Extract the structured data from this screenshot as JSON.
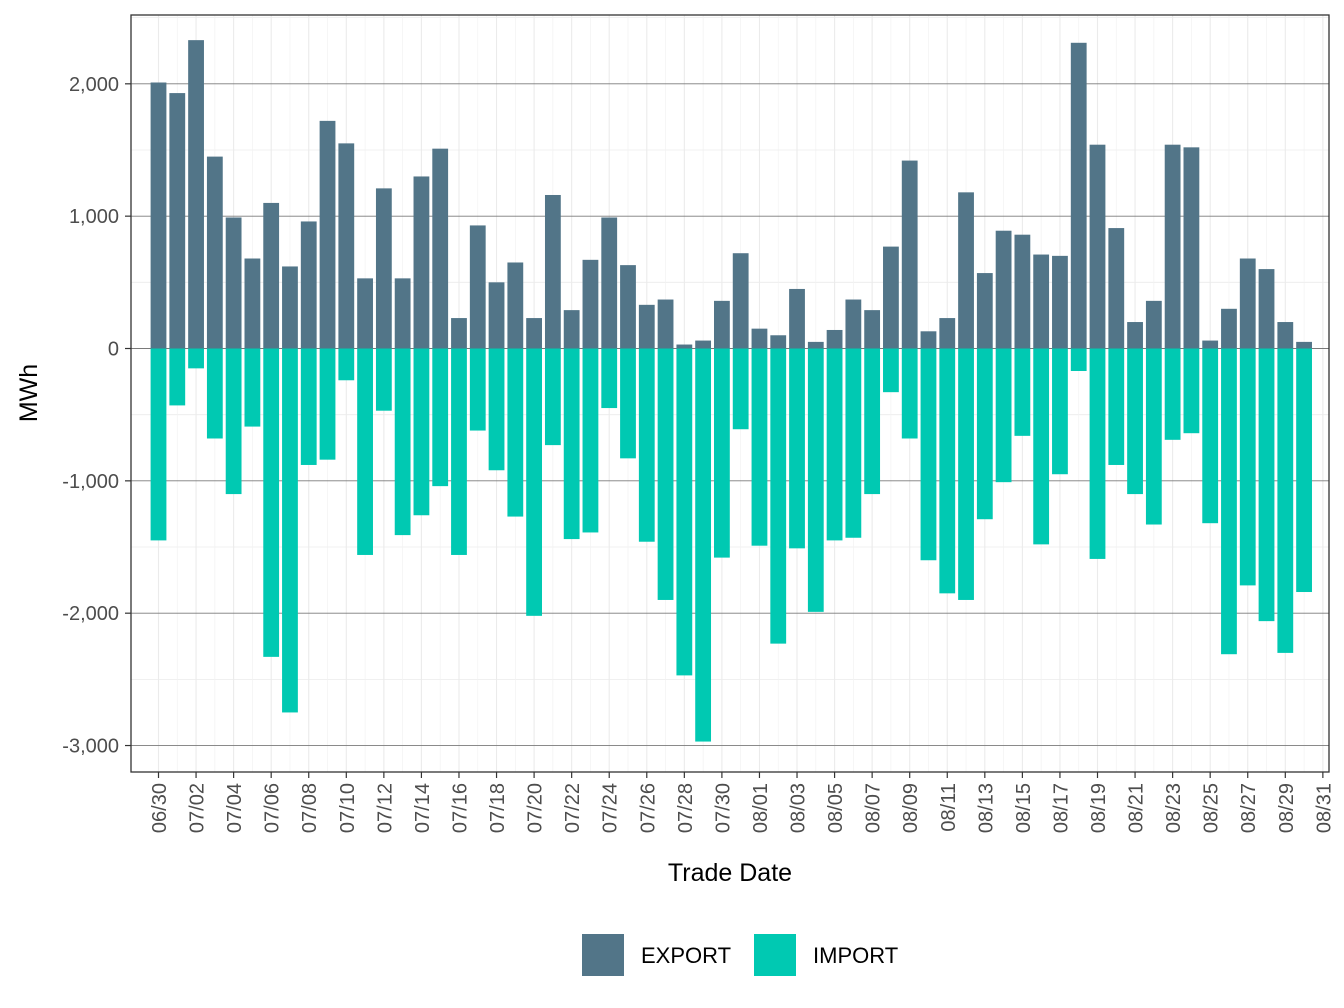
{
  "chart_data": {
    "type": "bar",
    "stacked": "diverging",
    "xlabel": "Trade Date",
    "ylabel": "MWh",
    "ylim": [
      -3200,
      2520
    ],
    "y_ticks": [
      -3000,
      -2000,
      -1000,
      0,
      1000,
      2000
    ],
    "y_tick_labels": [
      "-3,000",
      "-2,000",
      "-1,000",
      "0",
      "1,000",
      "2,000"
    ],
    "grid": true,
    "legend_position": "bottom",
    "categories": [
      "06/30",
      "07/01",
      "07/02",
      "07/03",
      "07/04",
      "07/05",
      "07/06",
      "07/07",
      "07/08",
      "07/09",
      "07/10",
      "07/11",
      "07/12",
      "07/13",
      "07/14",
      "07/15",
      "07/16",
      "07/17",
      "07/18",
      "07/19",
      "07/20",
      "07/21",
      "07/22",
      "07/23",
      "07/24",
      "07/25",
      "07/26",
      "07/27",
      "07/28",
      "07/29",
      "07/30",
      "07/31",
      "08/01",
      "08/02",
      "08/03",
      "08/04",
      "08/05",
      "08/06",
      "08/07",
      "08/08",
      "08/09",
      "08/10",
      "08/11",
      "08/12",
      "08/13",
      "08/14",
      "08/15",
      "08/16",
      "08/17",
      "08/18",
      "08/19",
      "08/20",
      "08/21",
      "08/22",
      "08/23",
      "08/24",
      "08/25",
      "08/26",
      "08/27",
      "08/28",
      "08/29",
      "08/30",
      "08/31"
    ],
    "tick_labels": [
      "06/30",
      "07/02",
      "07/04",
      "07/06",
      "07/08",
      "07/10",
      "07/12",
      "07/14",
      "07/16",
      "07/18",
      "07/20",
      "07/22",
      "07/24",
      "07/26",
      "07/28",
      "07/30",
      "08/01",
      "08/03",
      "08/05",
      "08/07",
      "08/09",
      "08/11",
      "08/13",
      "08/15",
      "08/17",
      "08/19",
      "08/21",
      "08/23",
      "08/25",
      "08/27",
      "08/29",
      "08/31"
    ],
    "series": [
      {
        "name": "EXPORT",
        "color": "#527588",
        "values": [
          2010,
          1930,
          2330,
          1450,
          990,
          680,
          1100,
          620,
          960,
          1720,
          1550,
          530,
          1210,
          530,
          1300,
          1510,
          230,
          930,
          500,
          650,
          230,
          1160,
          290,
          670,
          990,
          630,
          330,
          370,
          30,
          60,
          360,
          720,
          150,
          100,
          450,
          50,
          140,
          370,
          290,
          770,
          1420,
          130,
          230,
          1180,
          570,
          890,
          860,
          710,
          700,
          2310,
          1540,
          910,
          200,
          360,
          1540,
          1520,
          60,
          300,
          680,
          600,
          200,
          50,
          0
        ]
      },
      {
        "name": "IMPORT",
        "color": "#00c9b2",
        "values": [
          -1450,
          -430,
          -150,
          -680,
          -1100,
          -590,
          -2330,
          -2750,
          -880,
          -840,
          -240,
          -1560,
          -470,
          -1410,
          -1260,
          -1040,
          -1560,
          -620,
          -920,
          -1270,
          -2020,
          -730,
          -1440,
          -1390,
          -450,
          -830,
          -1460,
          -1900,
          -2470,
          -2970,
          -1580,
          -610,
          -1490,
          -2230,
          -1510,
          -1990,
          -1450,
          -1430,
          -1100,
          -330,
          -680,
          -1600,
          -1850,
          -1900,
          -1290,
          -1010,
          -660,
          -1480,
          -950,
          -170,
          -1590,
          -880,
          -1100,
          -1330,
          -690,
          -640,
          -1320,
          -2310,
          -1790,
          -2060,
          -2300,
          -1840,
          0
        ]
      }
    ]
  }
}
